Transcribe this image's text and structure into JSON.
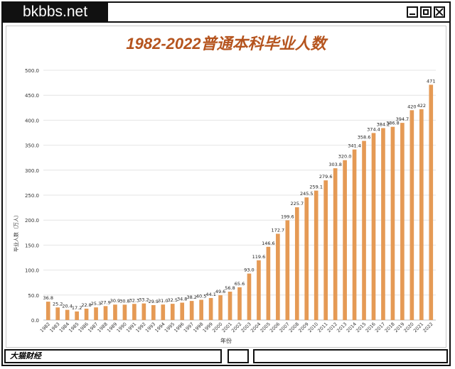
{
  "window": {
    "brand": "bkbbs.net",
    "buttons": [
      "minimize",
      "maximize",
      "close"
    ]
  },
  "footer": {
    "source": "大猫财经"
  },
  "chart_data": {
    "type": "bar",
    "title": "1982-2022普通本科毕业人数",
    "xlabel": "年份",
    "ylabel": "毕业人数（万人）",
    "ylim": [
      0,
      500
    ],
    "yticks": [
      "0.0",
      "50.0",
      "100.0",
      "150.0",
      "200.0",
      "250.0",
      "300.0",
      "350.0",
      "400.0",
      "450.0",
      "500.0"
    ],
    "grid": true,
    "bar_color": "#e59a55",
    "title_color": "#b5541e",
    "categories": [
      "1982",
      "1983",
      "1984",
      "1985",
      "1986",
      "1987",
      "1988",
      "1989",
      "1990",
      "1991",
      "1992",
      "1993",
      "1994",
      "1995",
      "1996",
      "1997",
      "1998",
      "1999",
      "2000",
      "2001",
      "2002",
      "2003",
      "2004",
      "2005",
      "2006",
      "2007",
      "2008",
      "2009",
      "2010",
      "2011",
      "2012",
      "2013",
      "2014",
      "2015",
      "2016",
      "2017",
      "2018",
      "2019",
      "2020",
      "2021",
      "2022"
    ],
    "values": [
      36.8,
      25.2,
      20.4,
      17.2,
      22.8,
      25.3,
      27.9,
      30.9,
      30.8,
      32.3,
      33.2,
      29.9,
      31.0,
      32.5,
      34.8,
      38.2,
      40.5,
      44.1,
      49.6,
      56.8,
      65.6,
      93.0,
      119.6,
      146.6,
      172.7,
      199.6,
      225.7,
      245.5,
      259.1,
      279.6,
      303.8,
      320.0,
      341.4,
      358.6,
      374.4,
      384.2,
      386.8,
      394.7,
      420,
      422,
      471
    ],
    "labels": [
      "36.8",
      "25.2",
      "20.4",
      "17.2",
      "22.8",
      "25.3",
      "27.9",
      "30.9",
      "30.8",
      "32.3",
      "33.2",
      "29.9",
      "31.0",
      "32.5",
      "34.8",
      "38.2",
      "40.5",
      "44.1",
      "49.6",
      "56.8",
      "65.6",
      "93.0",
      "119.6",
      "146.6",
      "172.7",
      "199.6",
      "225.7",
      "245.5",
      "259.1",
      "279.6",
      "303.8",
      "320.0",
      "341.4",
      "358.6",
      "374.4",
      "384.2",
      "386.8",
      "394.7",
      "420",
      "422",
      "471"
    ]
  }
}
